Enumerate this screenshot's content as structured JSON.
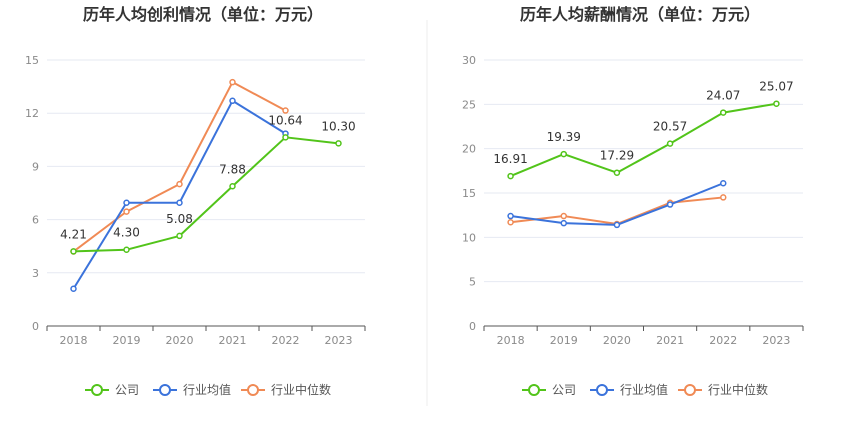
{
  "chart_data": [
    {
      "type": "line",
      "title": "历年人均创利情况（单位：万元）",
      "categories": [
        "2018",
        "2019",
        "2020",
        "2021",
        "2022",
        "2023"
      ],
      "ylim": [
        0,
        15
      ],
      "yticks": [
        0,
        3,
        6,
        9,
        12,
        15
      ],
      "series": [
        {
          "name": "公司",
          "color": "#52c41a",
          "values": [
            4.21,
            4.3,
            5.08,
            7.88,
            10.64,
            10.3
          ],
          "labels": [
            "4.21",
            "4.30",
            "5.08",
            "7.88",
            "10.64",
            "10.30"
          ]
        },
        {
          "name": "行业均值",
          "color": "#3b73db",
          "values": [
            2.1,
            6.95,
            6.95,
            12.7,
            10.85,
            null
          ]
        },
        {
          "name": "行业中位数",
          "color": "#f08a55",
          "values": [
            4.2,
            6.45,
            8.0,
            13.75,
            12.15,
            null
          ]
        }
      ]
    },
    {
      "type": "line",
      "title": "历年人均薪酬情况（单位：万元）",
      "categories": [
        "2018",
        "2019",
        "2020",
        "2021",
        "2022",
        "2023"
      ],
      "ylim": [
        0,
        30
      ],
      "yticks": [
        0,
        5,
        10,
        15,
        20,
        25,
        30
      ],
      "series": [
        {
          "name": "公司",
          "color": "#52c41a",
          "values": [
            16.91,
            19.39,
            17.29,
            20.57,
            24.07,
            25.07
          ],
          "labels": [
            "16.91",
            "19.39",
            "17.29",
            "20.57",
            "24.07",
            "25.07"
          ]
        },
        {
          "name": "行业均值",
          "color": "#3b73db",
          "values": [
            12.4,
            11.6,
            11.4,
            13.7,
            16.1,
            null
          ]
        },
        {
          "name": "行业中位数",
          "color": "#f08a55",
          "values": [
            11.7,
            12.4,
            11.5,
            13.9,
            14.5,
            null
          ]
        }
      ]
    }
  ]
}
